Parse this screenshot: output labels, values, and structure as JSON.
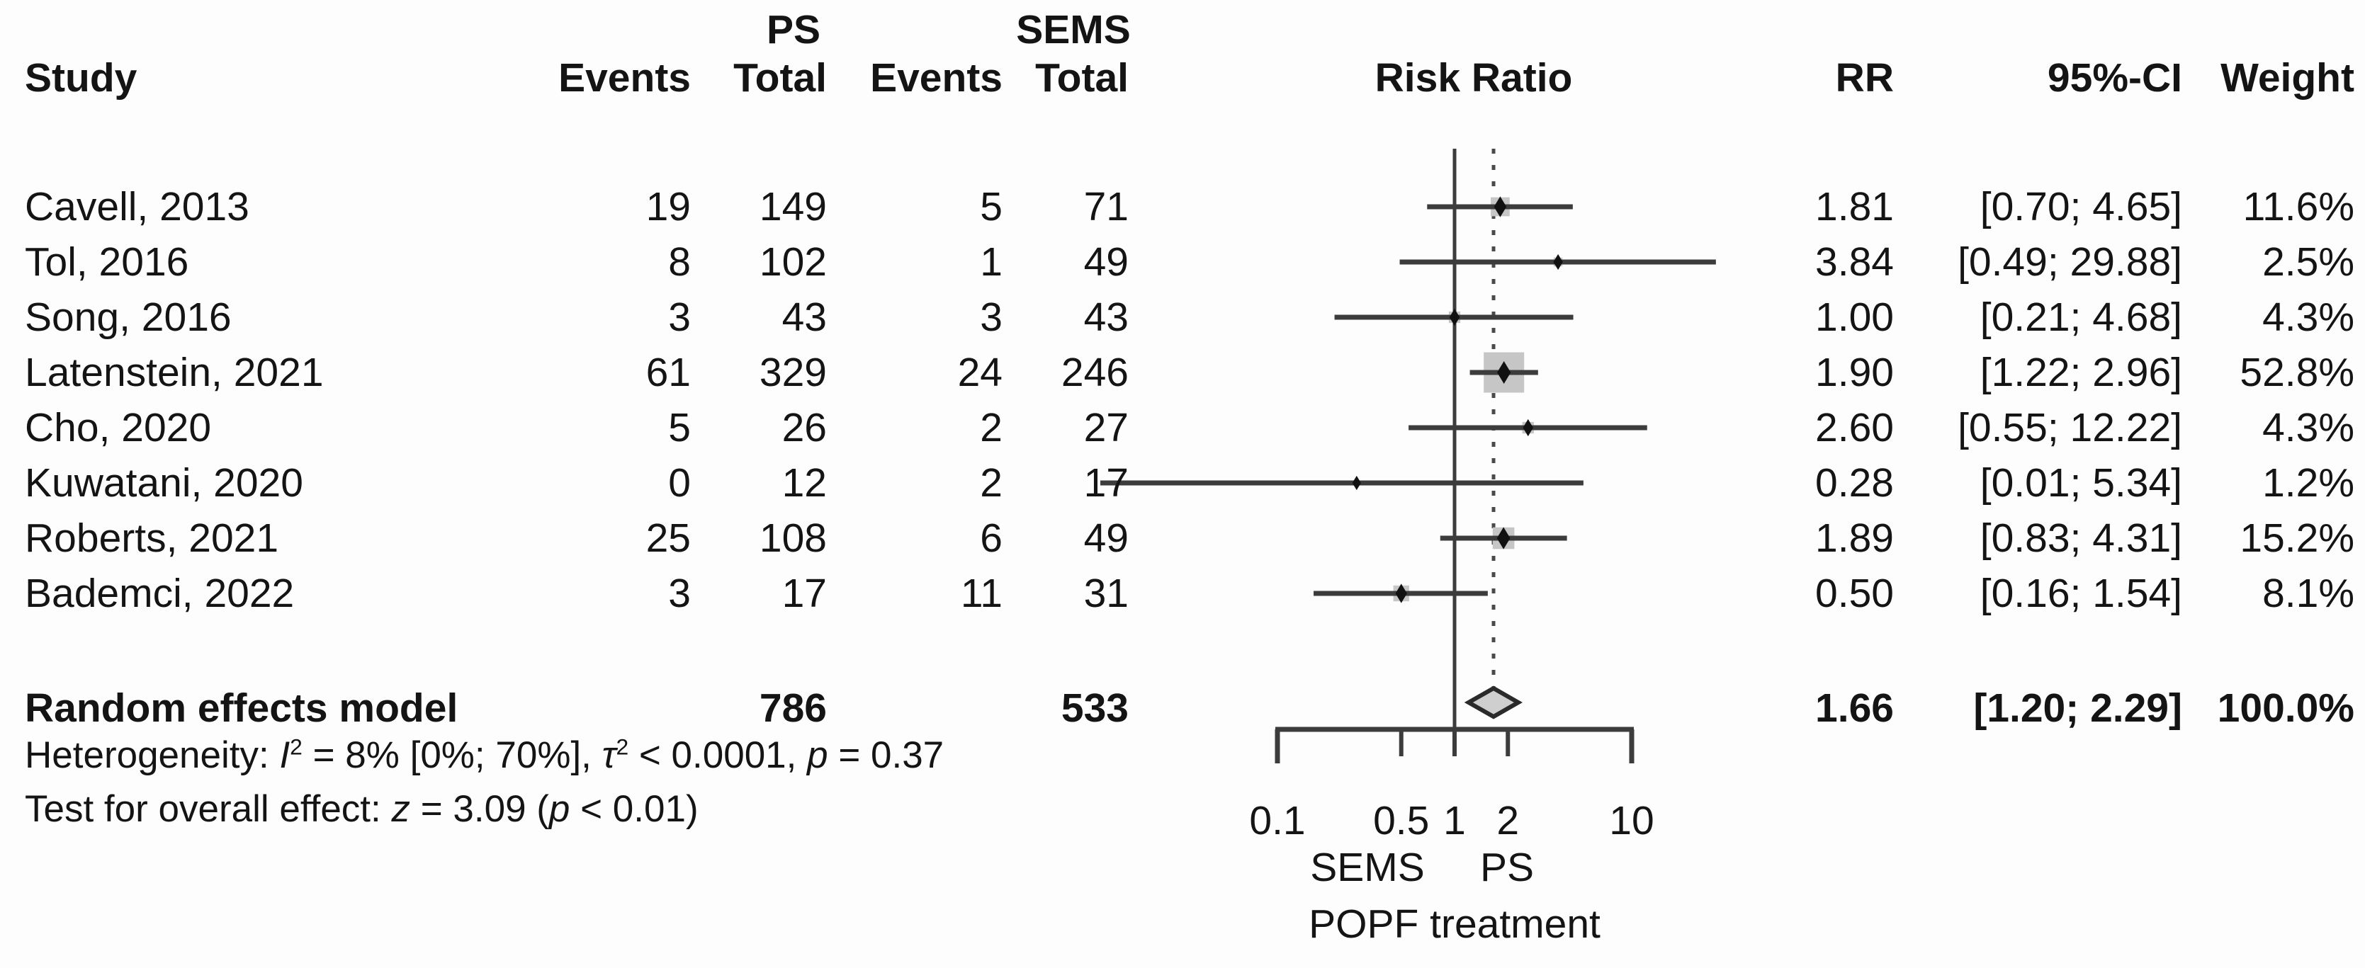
{
  "header": {
    "study": "Study",
    "ps_group": "PS",
    "sems_group": "SEMS",
    "events": "Events",
    "total": "Total",
    "risk_ratio": "Risk Ratio",
    "rr": "RR",
    "ci": "95%-CI",
    "weight": "Weight"
  },
  "chart_data": {
    "type": "forest",
    "effect_measure": "Risk Ratio",
    "x_axis": {
      "scale": "log10",
      "ticks": [
        0.1,
        0.5,
        1,
        2,
        10
      ],
      "tick_labels": [
        "0.1",
        "0.5",
        "1",
        "2",
        "10"
      ],
      "range": [
        0.1,
        10
      ]
    },
    "reference_line": 1,
    "pooled_dotted_line": 1.66,
    "comparison": {
      "left_label": "SEMS",
      "right_label": "PS",
      "xlabel": "POPF treatment"
    },
    "studies": [
      {
        "label": "Cavell, 2013",
        "ps_events": "19",
        "ps_total": "149",
        "sems_events": "5",
        "sems_total": "71",
        "rr": 1.81,
        "ci_low": 0.7,
        "ci_high": 4.65,
        "rr_text": "1.81",
        "ci_text": "[0.70; 4.65]",
        "weight_pct": 11.6,
        "weight_text": "11.6%"
      },
      {
        "label": "Tol, 2016",
        "ps_events": "8",
        "ps_total": "102",
        "sems_events": "1",
        "sems_total": "49",
        "rr": 3.84,
        "ci_low": 0.49,
        "ci_high": 29.88,
        "rr_text": "3.84",
        "ci_text": "[0.49; 29.88]",
        "weight_pct": 2.5,
        "weight_text": "2.5%"
      },
      {
        "label": "Song, 2016",
        "ps_events": "3",
        "ps_total": "43",
        "sems_events": "3",
        "sems_total": "43",
        "rr": 1.0,
        "ci_low": 0.21,
        "ci_high": 4.68,
        "rr_text": "1.00",
        "ci_text": "[0.21; 4.68]",
        "weight_pct": 4.3,
        "weight_text": "4.3%"
      },
      {
        "label": "Latenstein, 2021",
        "ps_events": "61",
        "ps_total": "329",
        "sems_events": "24",
        "sems_total": "246",
        "rr": 1.9,
        "ci_low": 1.22,
        "ci_high": 2.96,
        "rr_text": "1.90",
        "ci_text": "[1.22; 2.96]",
        "weight_pct": 52.8,
        "weight_text": "52.8%"
      },
      {
        "label": "Cho, 2020",
        "ps_events": "5",
        "ps_total": "26",
        "sems_events": "2",
        "sems_total": "27",
        "rr": 2.6,
        "ci_low": 0.55,
        "ci_high": 12.22,
        "rr_text": "2.60",
        "ci_text": "[0.55; 12.22]",
        "weight_pct": 4.3,
        "weight_text": "4.3%"
      },
      {
        "label": "Kuwatani, 2020",
        "ps_events": "0",
        "ps_total": "12",
        "sems_events": "2",
        "sems_total": "17",
        "rr": 0.28,
        "ci_low": 0.01,
        "ci_high": 5.34,
        "rr_text": "0.28",
        "ci_text": "[0.01; 5.34]",
        "weight_pct": 1.2,
        "weight_text": "1.2%"
      },
      {
        "label": "Roberts, 2021",
        "ps_events": "25",
        "ps_total": "108",
        "sems_events": "6",
        "sems_total": "49",
        "rr": 1.89,
        "ci_low": 0.83,
        "ci_high": 4.31,
        "rr_text": "1.89",
        "ci_text": "[0.83; 4.31]",
        "weight_pct": 15.2,
        "weight_text": "15.2%"
      },
      {
        "label": "Bademci, 2022",
        "ps_events": "3",
        "ps_total": "17",
        "sems_events": "11",
        "sems_total": "31",
        "rr": 0.5,
        "ci_low": 0.16,
        "ci_high": 1.54,
        "rr_text": "0.50",
        "ci_text": "[0.16; 1.54]",
        "weight_pct": 8.1,
        "weight_text": "8.1%"
      }
    ],
    "total": {
      "label": "Random effects model",
      "ps_total": "786",
      "sems_total": "533",
      "rr": 1.66,
      "ci_low": 1.2,
      "ci_high": 2.29,
      "rr_text": "1.66",
      "ci_text": "[1.20; 2.29]",
      "weight_text": "100.0%"
    },
    "heterogeneity_segments": [
      {
        "t": "Heterogeneity: "
      },
      {
        "t": "I",
        "i": 1
      },
      {
        "t": "2",
        "sup": 1
      },
      {
        "t": " = 8% [0%; 70%], "
      },
      {
        "t": "τ",
        "i": 1
      },
      {
        "t": "2",
        "sup": 1
      },
      {
        "t": " < 0.0001, "
      },
      {
        "t": "p",
        "i": 1
      },
      {
        "t": " = 0.37"
      }
    ],
    "overall_test_segments": [
      {
        "t": "Test for overall effect: "
      },
      {
        "t": "z",
        "i": 1
      },
      {
        "t": " = 3.09 ("
      },
      {
        "t": "p",
        "i": 1
      },
      {
        "t": " < 0.01)"
      }
    ],
    "colors": {
      "square": "#c6c6c6",
      "diamond_fill": "#cfcfcf",
      "diamond_stroke": "#2a2a2a",
      "line": "#3c3c3c",
      "dotted_line": "#4a4a4a",
      "text": "#141414"
    }
  }
}
